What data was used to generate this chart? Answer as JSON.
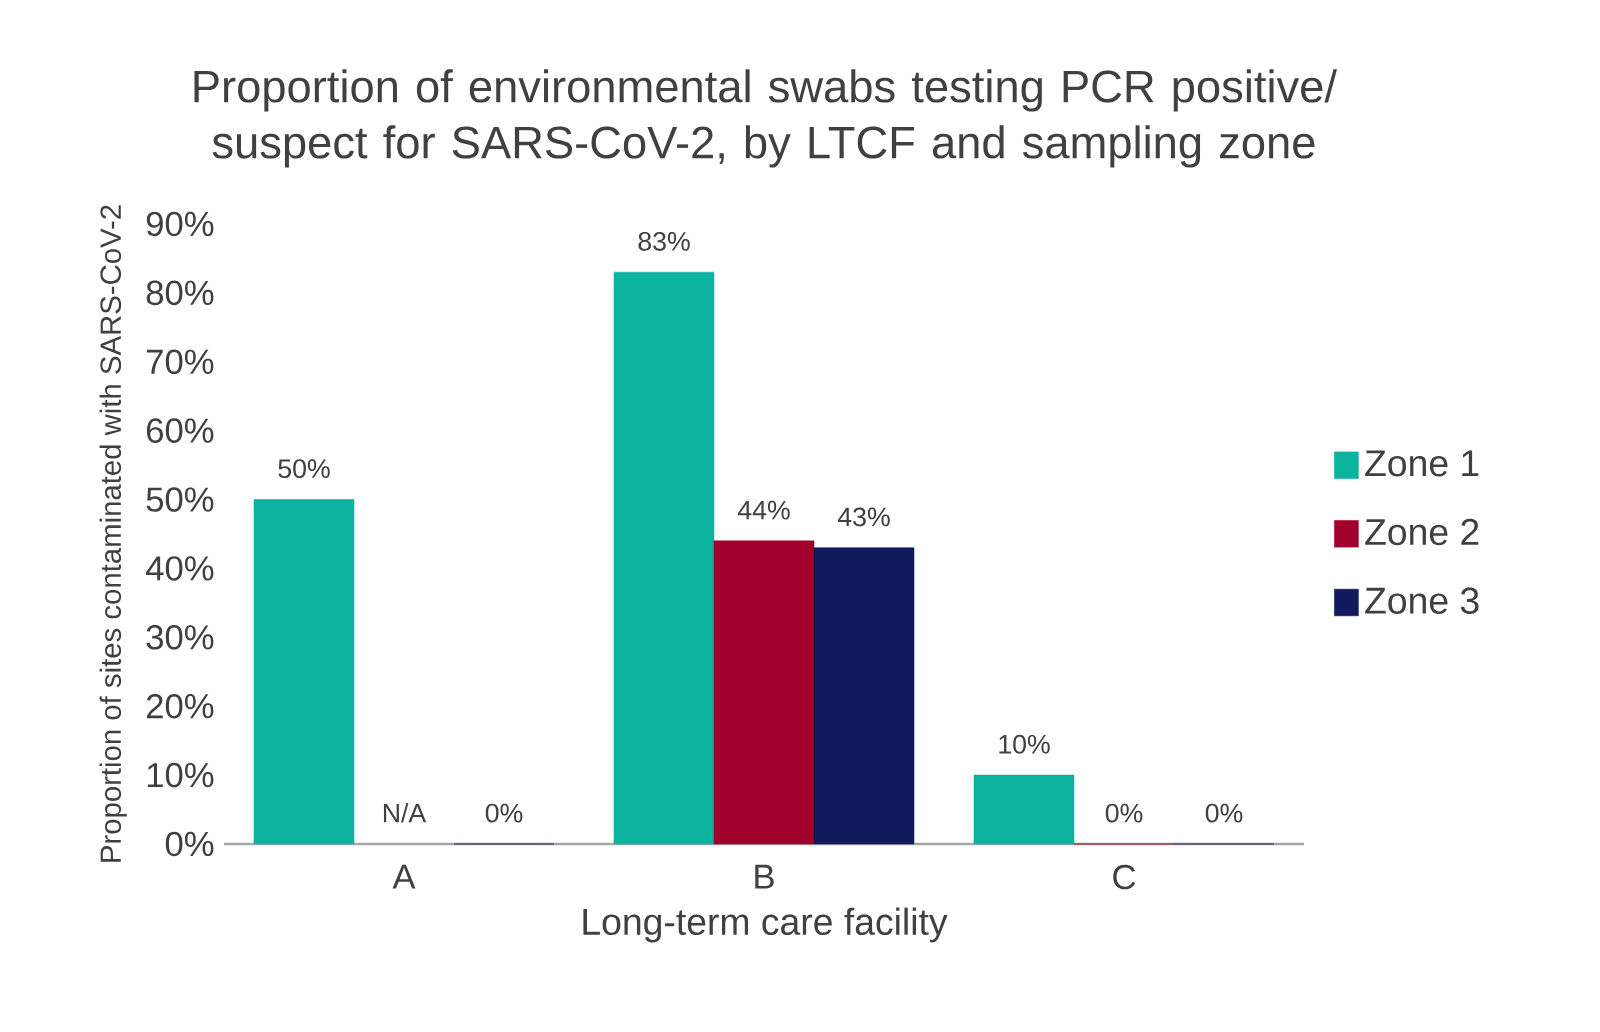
{
  "chart_data": {
    "type": "bar",
    "title": "Proportion of environmental swabs testing PCR positive/ suspect for SARS-CoV-2, by LTCF and sampling zone",
    "xlabel": "Long-term care facility",
    "ylabel": "Proportion of sites contaminated with SARS-CoV-2",
    "categories": [
      "A",
      "B",
      "C"
    ],
    "series": [
      {
        "name": "Zone 1",
        "color": "#0bb29e",
        "values": [
          50,
          83,
          10
        ],
        "value_labels": [
          "50%",
          "83%",
          "10%"
        ]
      },
      {
        "name": "Zone 2",
        "color": "#a0002c",
        "values": [
          null,
          44,
          0
        ],
        "value_labels": [
          "N/A",
          "44%",
          "0%"
        ]
      },
      {
        "name": "Zone 3",
        "color": "#111a5c",
        "values": [
          0,
          43,
          0
        ],
        "value_labels": [
          "0%",
          "43%",
          "0%"
        ]
      }
    ],
    "ylim": [
      0,
      90
    ],
    "yticks": [
      {
        "value": 0,
        "label": "0%"
      },
      {
        "value": 10,
        "label": "10%"
      },
      {
        "value": 20,
        "label": "20%"
      },
      {
        "value": 30,
        "label": "30%"
      },
      {
        "value": 40,
        "label": "40%"
      },
      {
        "value": 50,
        "label": "50%"
      },
      {
        "value": 60,
        "label": "60%"
      },
      {
        "value": 70,
        "label": "70%"
      },
      {
        "value": 80,
        "label": "80%"
      },
      {
        "value": 90,
        "label": "90%"
      }
    ],
    "grid": false,
    "legend": "right"
  }
}
